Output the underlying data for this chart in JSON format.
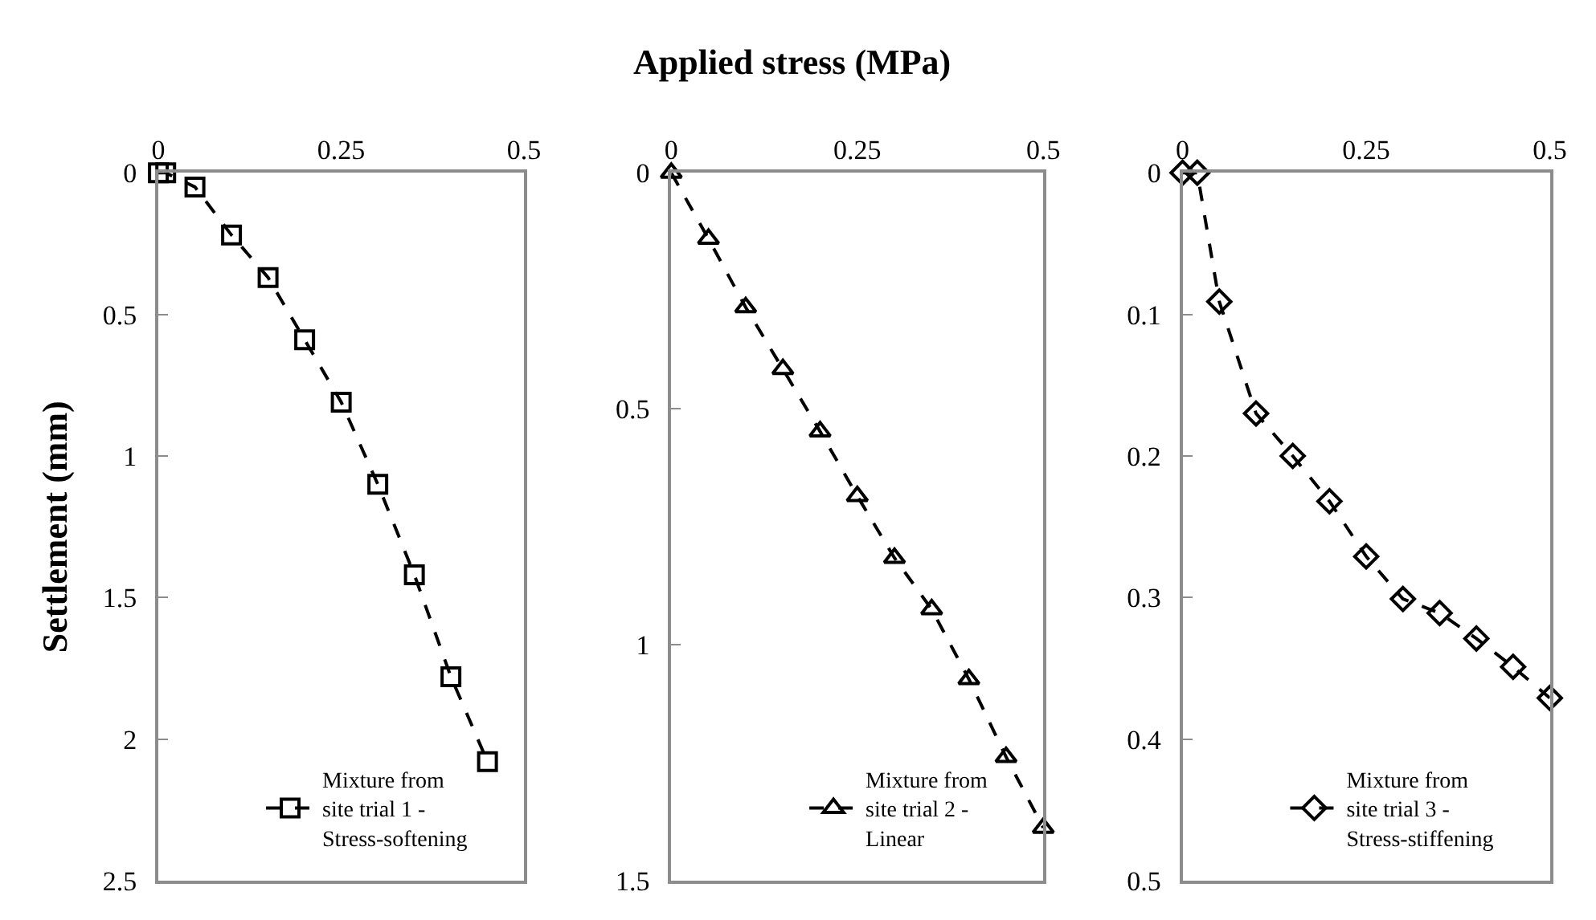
{
  "chart_data": [
    {
      "type": "line",
      "ylabel": "Settlement (mm)",
      "xlim": [
        0,
        0.5
      ],
      "xticks": [
        0,
        0.25,
        0.5
      ],
      "ylim": [
        2.5,
        0
      ],
      "yticks": [
        0,
        0.5,
        1,
        1.5,
        2,
        2.5
      ],
      "legend": "bottom right",
      "marker": "square",
      "line_style": "dashed",
      "series": [
        {
          "name": "Mixture from site trial 1 - Stress-softening",
          "color": "#000000",
          "x": [
            0,
            0.01,
            0.05,
            0.1,
            0.15,
            0.2,
            0.25,
            0.3,
            0.35,
            0.4,
            0.45
          ],
          "values": [
            0,
            0,
            0.05,
            0.22,
            0.37,
            0.59,
            0.81,
            1.1,
            1.42,
            1.78,
            2.08
          ]
        }
      ]
    },
    {
      "type": "line",
      "xlabel": "Applied stress (MPa)",
      "xlim": [
        0,
        0.5
      ],
      "xticks": [
        0,
        0.25,
        0.5
      ],
      "ylim": [
        1.5,
        0
      ],
      "yticks": [
        0,
        0.5,
        1,
        1.5
      ],
      "legend": "bottom right",
      "marker": "triangle",
      "line_style": "dashed",
      "series": [
        {
          "name": "Mixture from site trial 2 - Linear",
          "color": "#000000",
          "x": [
            0,
            0.05,
            0.1,
            0.15,
            0.2,
            0.25,
            0.3,
            0.35,
            0.4,
            0.45,
            0.5
          ],
          "values": [
            0,
            0.14,
            0.285,
            0.416,
            0.548,
            0.685,
            0.816,
            0.925,
            1.073,
            1.238,
            1.388
          ]
        }
      ]
    },
    {
      "type": "line",
      "xlim": [
        0,
        0.5
      ],
      "xticks": [
        0,
        0.25,
        0.5
      ],
      "ylim": [
        0.5,
        0
      ],
      "yticks": [
        0,
        0.1,
        0.2,
        0.3,
        0.4,
        0.5
      ],
      "legend": "bottom right",
      "marker": "diamond",
      "line_style": "dashed",
      "series": [
        {
          "name": "Mixture from site trial 3 - Stress-stiffening",
          "color": "#000000",
          "x": [
            0,
            0.02,
            0.05,
            0.1,
            0.15,
            0.2,
            0.25,
            0.3,
            0.35,
            0.4,
            0.45,
            0.5
          ],
          "values": [
            0,
            0,
            0.091,
            0.17,
            0.2,
            0.232,
            0.271,
            0.301,
            0.311,
            0.329,
            0.349,
            0.371
          ]
        }
      ]
    }
  ]
}
